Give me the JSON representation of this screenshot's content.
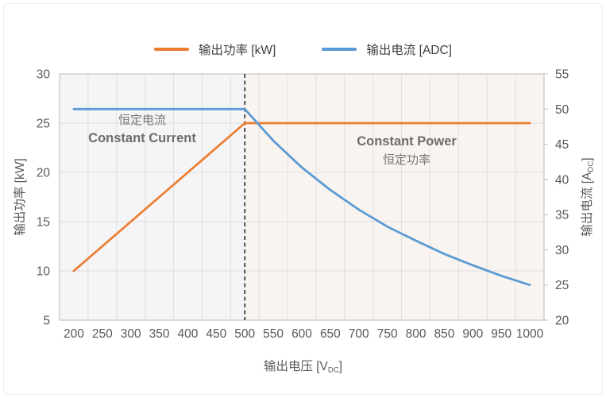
{
  "frame": {
    "background": "#ffffff",
    "border_color": "#ececec"
  },
  "legend": {
    "items": [
      {
        "label": "输出功率 [kW]",
        "color": "#ED7D31"
      },
      {
        "label": "输出电流 [ADC]",
        "color": "#5B9BD5"
      }
    ]
  },
  "chart_data": {
    "type": "line",
    "x": [
      200,
      250,
      300,
      350,
      400,
      450,
      500,
      550,
      600,
      650,
      700,
      750,
      800,
      850,
      900,
      950,
      1000
    ],
    "x_axis": {
      "title_main": "输出电压 [V",
      "title_sub": "DC",
      "title_end": "]"
    },
    "left_axis": {
      "title": "输出功率 [kW]",
      "min": 5,
      "max": 30,
      "ticks": [
        5,
        10,
        15,
        20,
        25,
        30
      ]
    },
    "right_axis": {
      "title_main": "输出电流 [A",
      "title_sub": "DC",
      "title_end": "]",
      "min": 20,
      "max": 55,
      "ticks": [
        20,
        25,
        30,
        35,
        40,
        45,
        50,
        55
      ]
    },
    "series": [
      {
        "name": "输出功率 [kW]",
        "axis": "left",
        "color": "#ED7D31",
        "values": [
          10,
          12.5,
          15,
          17.5,
          20,
          22.5,
          25,
          25,
          25,
          25,
          25,
          25,
          25,
          25,
          25,
          25,
          25
        ]
      },
      {
        "name": "输出电流 [ADC]",
        "axis": "right",
        "color": "#5B9BD5",
        "values": [
          50,
          50,
          50,
          50,
          50,
          50,
          50,
          45.5,
          41.7,
          38.5,
          35.7,
          33.3,
          31.3,
          29.4,
          27.8,
          26.3,
          25
        ]
      }
    ],
    "divider_x": 500,
    "annotations": [
      {
        "line1": "恒定电流",
        "line2": "Constant Current"
      },
      {
        "line1": "Constant Power",
        "line2": "恒定功率"
      }
    ],
    "region_fills": {
      "left": "#f5f5f8",
      "right": "#faf4f0"
    },
    "grid_color": "#dfdfdf",
    "plot_border_color": "#c6c6c6",
    "tick_label_color": "#595959",
    "divider_color": "#3f3f3f",
    "legend_position": "top",
    "grid": true
  }
}
